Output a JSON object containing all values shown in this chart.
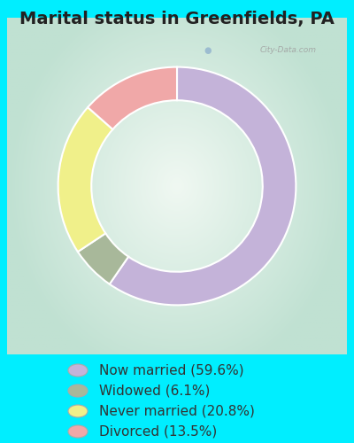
{
  "title": "Marital status in Greenfields, PA",
  "slices": [
    59.6,
    6.1,
    20.8,
    13.5
  ],
  "labels": [
    "Now married (59.6%)",
    "Widowed (6.1%)",
    "Never married (20.8%)",
    "Divorced (13.5%)"
  ],
  "colors": [
    "#c4b3d9",
    "#a8b89a",
    "#f0f08a",
    "#f0a8a8"
  ],
  "bg_gradient_center": "#f0f5f0",
  "bg_gradient_edge": "#c8e8d8",
  "outer_bg": "#00eeff",
  "donut_width": 0.28,
  "start_angle": 90,
  "title_fontsize": 14,
  "legend_fontsize": 11,
  "watermark": "City-Data.com"
}
